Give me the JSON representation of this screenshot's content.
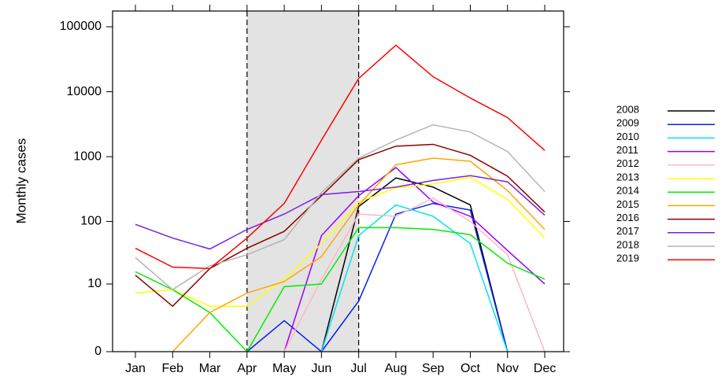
{
  "chart_data": {
    "type": "line",
    "y_label": "Monthly cases",
    "categories": [
      "Jan",
      "Feb",
      "Mar",
      "Apr",
      "May",
      "Jun",
      "Jul",
      "Aug",
      "Sep",
      "Oct",
      "Nov",
      "Dec"
    ],
    "log_scale": "log10(v+1)",
    "ylim": [
      0,
      100000
    ],
    "yticks": [
      0,
      10,
      100,
      1000,
      10000,
      100000
    ],
    "shaded": {
      "from": "Apr",
      "to": "Jul"
    },
    "series": [
      {
        "name": "2008",
        "color": "#000000",
        "values": [
          null,
          null,
          null,
          null,
          null,
          0,
          170,
          470,
          340,
          180,
          0,
          null
        ]
      },
      {
        "name": "2009",
        "color": "#0022ee",
        "values": [
          null,
          null,
          null,
          0,
          2,
          0,
          5,
          130,
          190,
          150,
          0,
          null
        ]
      },
      {
        "name": "2010",
        "color": "#00e5ee",
        "values": [
          null,
          null,
          null,
          null,
          null,
          0,
          60,
          180,
          120,
          45,
          0,
          null
        ]
      },
      {
        "name": "2011",
        "color": "#9a00ff",
        "values": [
          null,
          null,
          null,
          null,
          0,
          60,
          250,
          680,
          200,
          120,
          35,
          10
        ]
      },
      {
        "name": "2012",
        "color": "#ffb6c1",
        "values": [
          null,
          null,
          null,
          null,
          0,
          12,
          130,
          120,
          230,
          100,
          30,
          0
        ]
      },
      {
        "name": "2013",
        "color": "#ffff00",
        "values": [
          7,
          8,
          4,
          4,
          12,
          45,
          200,
          330,
          380,
          480,
          220,
          55
        ]
      },
      {
        "name": "2014",
        "color": "#00ee00",
        "values": [
          16,
          8,
          3,
          0,
          9,
          10,
          80,
          80,
          75,
          62,
          22,
          12
        ]
      },
      {
        "name": "2015",
        "color": "#ffa500",
        "values": [
          null,
          0,
          3,
          7,
          11,
          28,
          180,
          750,
          950,
          850,
          300,
          75
        ]
      },
      {
        "name": "2016",
        "color": "#8b0000",
        "values": [
          14,
          4,
          18,
          38,
          70,
          250,
          900,
          1450,
          1550,
          1050,
          500,
          140
        ]
      },
      {
        "name": "2017",
        "color": "#7b1fe0",
        "values": [
          90,
          55,
          37,
          75,
          130,
          260,
          290,
          340,
          430,
          510,
          410,
          125
        ]
      },
      {
        "name": "2018",
        "color": "#b4b4b4",
        "values": [
          27,
          8,
          20,
          30,
          52,
          280,
          950,
          1800,
          3100,
          2400,
          1200,
          290
        ]
      },
      {
        "name": "2019",
        "color": "#ff0000",
        "values": [
          38,
          19,
          18,
          55,
          190,
          1800,
          16000,
          52000,
          17000,
          8000,
          4000,
          1250
        ]
      }
    ]
  }
}
